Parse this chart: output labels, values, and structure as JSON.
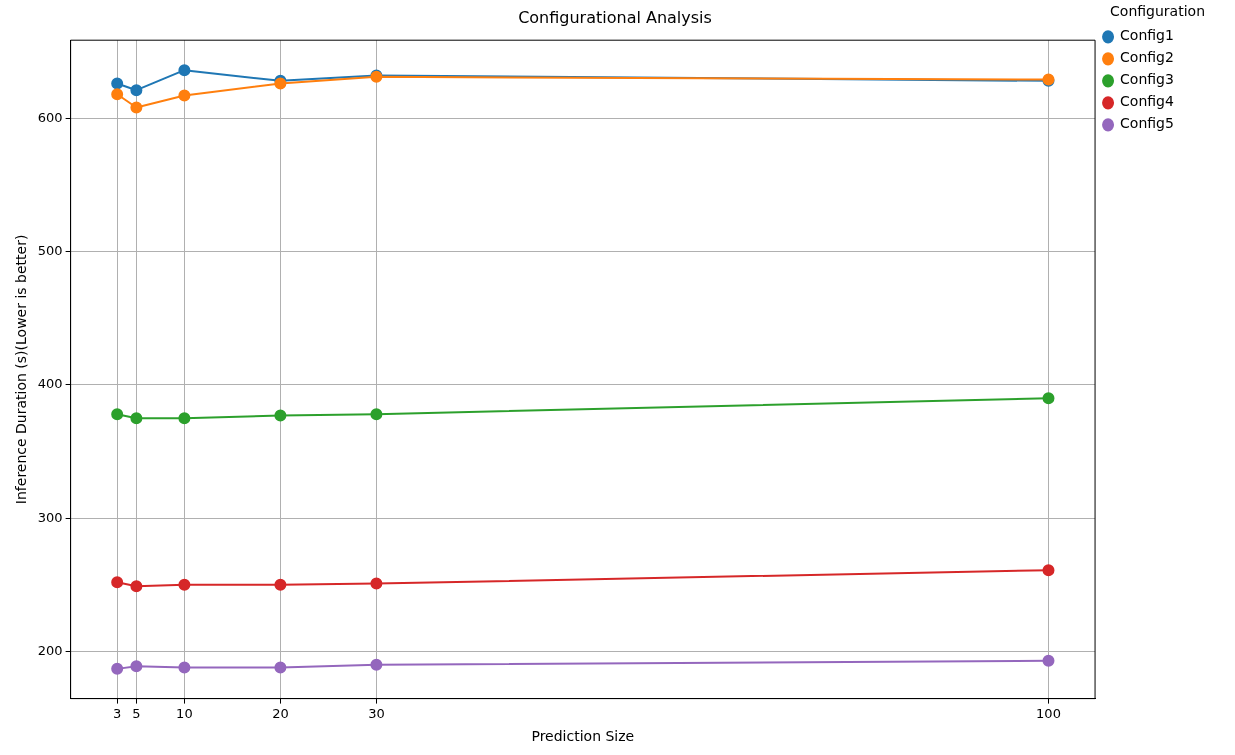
{
  "chart_data": {
    "type": "line",
    "title": "Configurational Analysis",
    "xlabel": "Prediction Size",
    "ylabel": "Inference Duration (s)(Lower is better)",
    "legend_title": "Configuration",
    "x": [
      3,
      5,
      10,
      20,
      30,
      100
    ],
    "series": [
      {
        "name": "Config1",
        "color": "#1f77b4",
        "values": [
          626,
          621,
          636,
          628,
          632,
          628
        ]
      },
      {
        "name": "Config2",
        "color": "#ff7f0e",
        "values": [
          618,
          608,
          617,
          626,
          631,
          629
        ]
      },
      {
        "name": "Config3",
        "color": "#2ca02c",
        "values": [
          378,
          375,
          375,
          377,
          378,
          390
        ]
      },
      {
        "name": "Config4",
        "color": "#d62728",
        "values": [
          252,
          249,
          250,
          250,
          251,
          261
        ]
      },
      {
        "name": "Config5",
        "color": "#9467bd",
        "values": [
          187,
          189,
          188,
          188,
          190,
          193
        ]
      }
    ],
    "xlim": [
      -1.85,
      104.85
    ],
    "xticks": [
      3,
      5,
      10,
      20,
      30,
      100
    ],
    "ylim": [
      164.7,
      658.5
    ],
    "yticks": [
      200,
      300,
      400,
      500,
      600
    ],
    "grid": true,
    "legend": "top right",
    "marker": "circle",
    "line_style": "solid"
  }
}
